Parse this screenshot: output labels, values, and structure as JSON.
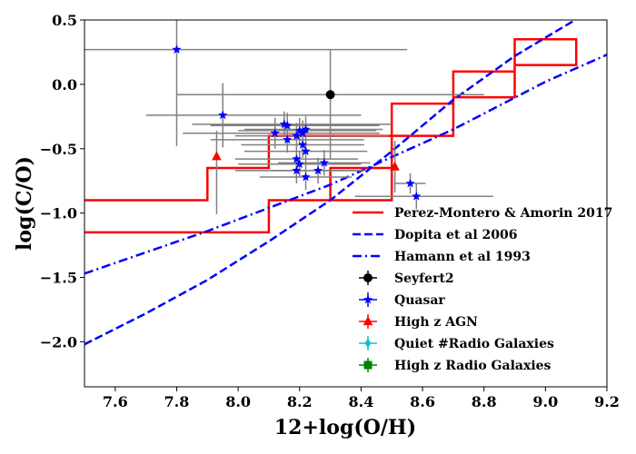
{
  "chart_data": {
    "type": "scatter",
    "xlabel": "12+log(O/H)",
    "ylabel": "log(C/O)",
    "xlim": [
      7.5,
      9.2
    ],
    "ylim": [
      -2.35,
      0.5
    ],
    "xticks": [
      7.6,
      7.8,
      8.0,
      8.2,
      8.4,
      8.6,
      8.8,
      9.0,
      9.2
    ],
    "yticks": [
      -2.0,
      -1.5,
      -1.0,
      -0.5,
      0.0,
      0.5
    ],
    "xtick_labels": [
      "7.6",
      "7.8",
      "8.0",
      "8.2",
      "8.4",
      "8.6",
      "8.8",
      "9.0",
      "9.2"
    ],
    "ytick_labels": [
      "−2.0",
      "−1.5",
      "−1.0",
      "−0.5",
      "0.0",
      "0.5"
    ],
    "colors": {
      "red": "#ff0000",
      "blue": "#0000ff",
      "black": "#000000",
      "gray": "#808080",
      "cyan": "#17becf",
      "green": "#008000"
    },
    "lines": [
      {
        "name": "Perez-Montero & Amorin 2017",
        "style": "solid",
        "color": "#ff0000",
        "segments": [
          [
            [
              7.5,
              -0.9
            ],
            [
              7.9,
              -0.9
            ],
            [
              7.9,
              -0.65
            ],
            [
              8.1,
              -0.65
            ],
            [
              8.1,
              -0.4
            ],
            [
              8.5,
              -0.4
            ],
            [
              8.5,
              -0.15
            ],
            [
              8.7,
              -0.15
            ],
            [
              8.7,
              0.1
            ],
            [
              8.9,
              0.1
            ],
            [
              8.9,
              0.35
            ],
            [
              9.1,
              0.35
            ],
            [
              9.1,
              0.15
            ],
            [
              8.9,
              0.15
            ],
            [
              8.9,
              -0.1
            ],
            [
              8.7,
              -0.1
            ],
            [
              8.7,
              -0.4
            ],
            [
              8.5,
              -0.4
            ],
            [
              8.5,
              -0.65
            ],
            [
              8.3,
              -0.65
            ],
            [
              8.3,
              -0.9
            ],
            [
              8.1,
              -0.9
            ],
            [
              8.1,
              -1.15
            ],
            [
              7.5,
              -1.15
            ]
          ],
          [
            [
              8.3,
              -0.9
            ],
            [
              8.5,
              -0.9
            ],
            [
              8.5,
              -0.65
            ]
          ]
        ]
      },
      {
        "name": "Dopita et al 2006",
        "style": "dashed",
        "color": "#0000ff",
        "points": [
          [
            7.5,
            -2.02
          ],
          [
            7.7,
            -1.78
          ],
          [
            7.9,
            -1.52
          ],
          [
            8.1,
            -1.22
          ],
          [
            8.3,
            -0.9
          ],
          [
            8.5,
            -0.52
          ],
          [
            8.7,
            -0.12
          ],
          [
            8.9,
            0.22
          ],
          [
            9.11,
            0.52
          ]
        ]
      },
      {
        "name": "Hamann et al 1993",
        "style": "dashdot",
        "color": "#0000ff",
        "points": [
          [
            7.5,
            -1.47
          ],
          [
            7.9,
            -1.14
          ],
          [
            8.3,
            -0.78
          ],
          [
            8.7,
            -0.35
          ],
          [
            9.0,
            0.02
          ],
          [
            9.2,
            0.23
          ]
        ]
      }
    ],
    "series": [
      {
        "name": "Seyfert2",
        "marker": "circle",
        "color": "#000000",
        "points": [
          {
            "x": 8.3,
            "y": -0.08,
            "xerr": [
              0.5,
              0.5
            ],
            "yerr": [
              0.5,
              0.35
            ]
          }
        ]
      },
      {
        "name": "Quasar",
        "marker": "star",
        "color": "#0000ff",
        "points": [
          {
            "x": 7.8,
            "y": 0.27,
            "xerr": [
              0.3,
              0.75
            ],
            "yerr": [
              0.75,
              0.3
            ]
          },
          {
            "x": 7.95,
            "y": -0.24,
            "xerr": [
              0.25,
              0.45
            ],
            "yerr": [
              0.25,
              0.25
            ]
          },
          {
            "x": 8.12,
            "y": -0.38,
            "xerr": [
              0.3,
              0.3
            ],
            "yerr": [
              0.12,
              0.12
            ]
          },
          {
            "x": 8.15,
            "y": -0.31,
            "xerr": [
              0.3,
              0.35
            ],
            "yerr": [
              0.1,
              0.1
            ]
          },
          {
            "x": 8.16,
            "y": -0.32,
            "xerr": [
              0.25,
              0.3
            ],
            "yerr": [
              0.1,
              0.1
            ]
          },
          {
            "x": 8.16,
            "y": -0.43,
            "xerr": [
              0.25,
              0.25
            ],
            "yerr": [
              0.1,
              0.1
            ]
          },
          {
            "x": 8.19,
            "y": -0.4,
            "xerr": [
              0.2,
              0.3
            ],
            "yerr": [
              0.1,
              0.1
            ]
          },
          {
            "x": 8.2,
            "y": -0.36,
            "xerr": [
              0.2,
              0.25
            ],
            "yerr": [
              0.1,
              0.1
            ]
          },
          {
            "x": 8.21,
            "y": -0.38,
            "xerr": [
              0.2,
              0.25
            ],
            "yerr": [
              0.1,
              0.1
            ]
          },
          {
            "x": 8.22,
            "y": -0.35,
            "xerr": [
              0.2,
              0.25
            ],
            "yerr": [
              0.1,
              0.1
            ]
          },
          {
            "x": 8.21,
            "y": -0.47,
            "xerr": [
              0.2,
              0.2
            ],
            "yerr": [
              0.1,
              0.1
            ]
          },
          {
            "x": 8.22,
            "y": -0.52,
            "xerr": [
              0.2,
              0.2
            ],
            "yerr": [
              0.1,
              0.1
            ]
          },
          {
            "x": 8.19,
            "y": -0.58,
            "xerr": [
              0.2,
              0.2
            ],
            "yerr": [
              0.1,
              0.1
            ]
          },
          {
            "x": 8.2,
            "y": -0.62,
            "xerr": [
              0.2,
              0.2
            ],
            "yerr": [
              0.1,
              0.1
            ]
          },
          {
            "x": 8.19,
            "y": -0.67,
            "xerr": [
              0.2,
              0.2
            ],
            "yerr": [
              0.1,
              0.1
            ]
          },
          {
            "x": 8.22,
            "y": -0.72,
            "xerr": [
              0.15,
              0.15
            ],
            "yerr": [
              0.1,
              0.1
            ]
          },
          {
            "x": 8.26,
            "y": -0.67,
            "xerr": [
              0.15,
              0.15
            ],
            "yerr": [
              0.1,
              0.1
            ]
          },
          {
            "x": 8.28,
            "y": -0.61,
            "xerr": [
              0.15,
              0.15
            ],
            "yerr": [
              0.1,
              0.1
            ]
          },
          {
            "x": 8.56,
            "y": -0.77,
            "xerr": [
              0.05,
              0.05
            ],
            "yerr": [
              0.08,
              0.08
            ]
          },
          {
            "x": 8.58,
            "y": -0.87,
            "xerr": [
              0.2,
              0.25
            ],
            "yerr": [
              0.1,
              0.1
            ]
          }
        ]
      },
      {
        "name": "High z AGN",
        "marker": "triangle",
        "color": "#ff0000",
        "points": [
          {
            "x": 7.93,
            "y": -0.56,
            "xerr": [
              0.0,
              0.0
            ],
            "yerr": [
              0.45,
              0.2
            ]
          },
          {
            "x": 8.51,
            "y": -0.64,
            "xerr": [
              0.0,
              0.0
            ],
            "yerr": [
              0.2,
              0.2
            ]
          }
        ]
      },
      {
        "name": "Quiet #Radio Galaxies",
        "marker": "diamond",
        "color": "#17becf",
        "points": []
      },
      {
        "name": "High z Radio Galaxies",
        "marker": "square",
        "color": "#008000",
        "points": []
      }
    ],
    "legend": {
      "position": "lower-right",
      "entries": [
        {
          "label": "Perez-Montero & Amorin 2017",
          "kind": "line",
          "style": "solid",
          "color": "#ff0000"
        },
        {
          "label": "Dopita et al 2006",
          "kind": "line",
          "style": "dashed",
          "color": "#0000ff"
        },
        {
          "label": "Hamann et al 1993",
          "kind": "line",
          "style": "dashdot",
          "color": "#0000ff"
        },
        {
          "label": "Seyfert2",
          "kind": "marker",
          "marker": "circle",
          "color": "#000000"
        },
        {
          "label": "Quasar",
          "kind": "marker",
          "marker": "star",
          "color": "#0000ff"
        },
        {
          "label": "High z AGN",
          "kind": "marker",
          "marker": "triangle",
          "color": "#ff0000"
        },
        {
          "label": "Quiet #Radio Galaxies",
          "kind": "marker",
          "marker": "diamond",
          "color": "#17becf"
        },
        {
          "label": "High z Radio Galaxies",
          "kind": "marker",
          "marker": "square",
          "color": "#008000"
        }
      ]
    }
  }
}
